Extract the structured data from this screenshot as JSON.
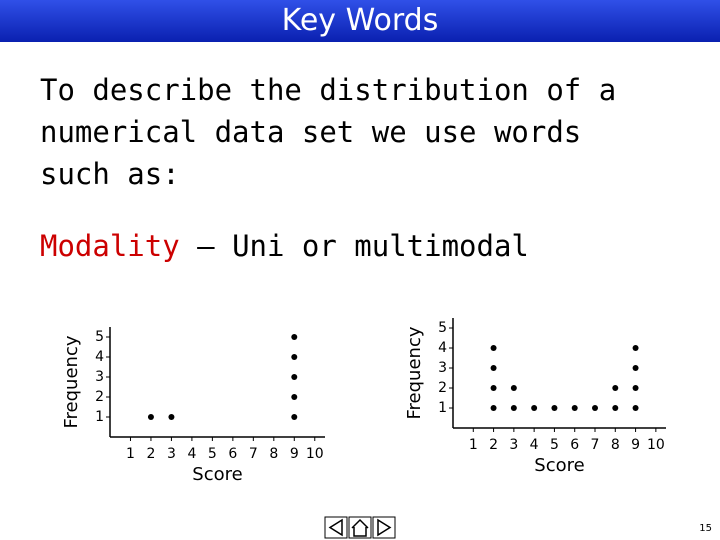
{
  "header": {
    "title": "Key Words"
  },
  "body": {
    "lines": [
      "To describe the distribution of a",
      "numerical data set we use words",
      "such as:"
    ]
  },
  "modality": {
    "term": "Modality",
    "rest": " – Uni or multimodal"
  },
  "chart_data": [
    {
      "type": "dot",
      "xlabel": "Score",
      "ylabel": "Frequency",
      "x": [
        1,
        2,
        3,
        4,
        5,
        6,
        7,
        8,
        9,
        10
      ],
      "values": [
        0,
        1,
        1,
        0,
        0,
        0,
        0,
        0,
        5,
        0
      ],
      "xlim": [
        0,
        10.5
      ],
      "ylim": [
        0,
        5.5
      ],
      "xticks": [
        1,
        2,
        3,
        4,
        5,
        6,
        7,
        8,
        9,
        10
      ],
      "yticks": [
        1,
        2,
        3,
        4,
        5
      ],
      "color": "#000000"
    },
    {
      "type": "dot",
      "xlabel": "Score",
      "ylabel": "Frequency",
      "x": [
        1,
        2,
        3,
        4,
        5,
        6,
        7,
        8,
        9,
        10
      ],
      "values": [
        0,
        4,
        2,
        1,
        1,
        1,
        1,
        2,
        4,
        0
      ],
      "xlim": [
        0,
        10.5
      ],
      "ylim": [
        0,
        5.5
      ],
      "xticks": [
        1,
        2,
        3,
        4,
        5,
        6,
        7,
        8,
        9,
        10
      ],
      "yticks": [
        1,
        2,
        3,
        4,
        5
      ],
      "color": "#000000"
    }
  ],
  "footer": {
    "page": "15"
  }
}
